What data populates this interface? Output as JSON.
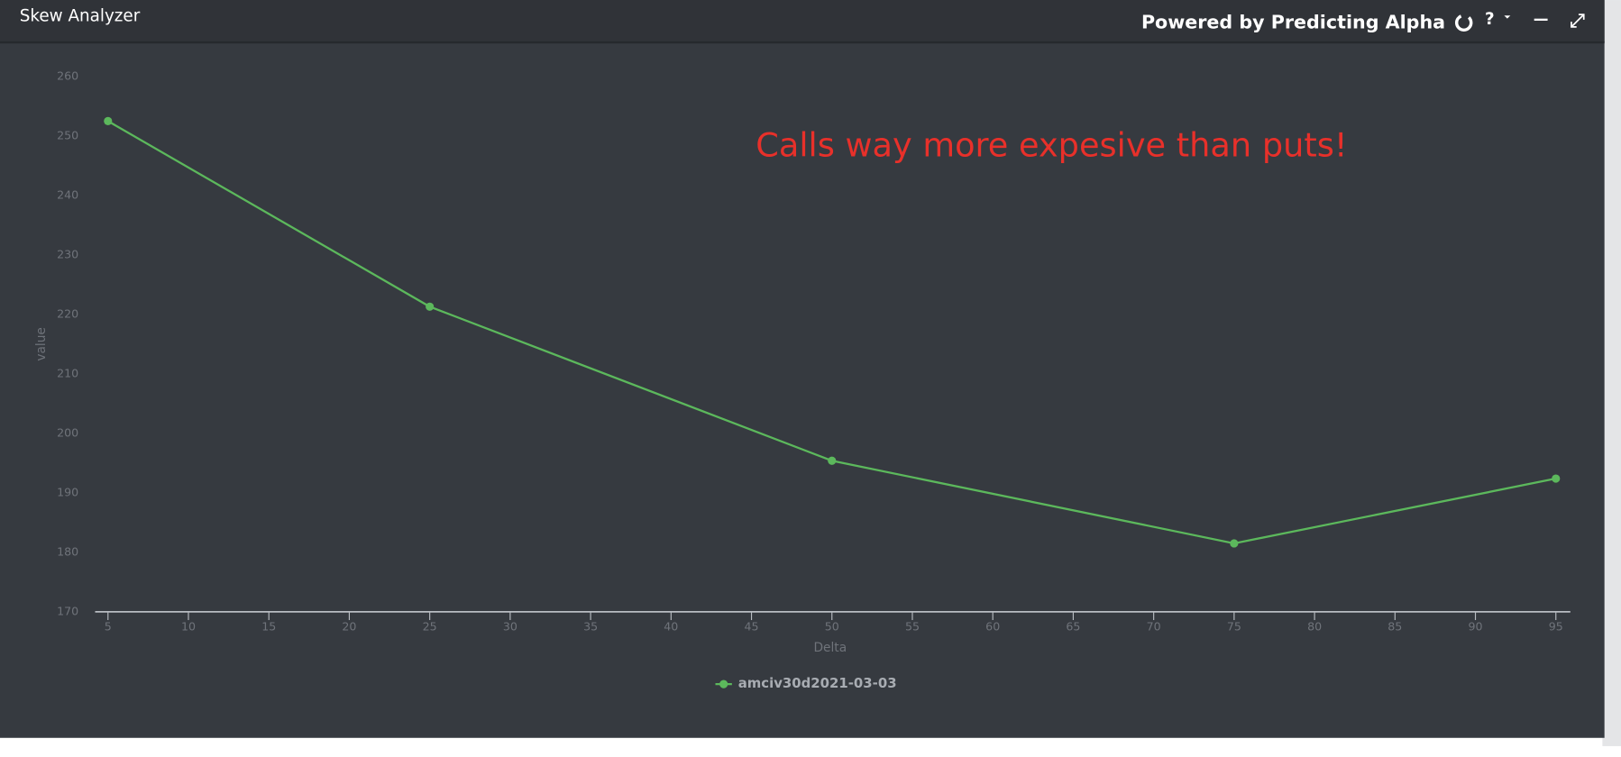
{
  "header": {
    "title": "Skew Analyzer",
    "powered_by": "Powered by Predicting Alpha",
    "help": "?"
  },
  "chart_data": {
    "type": "line",
    "annotation": "Calls way more expesive than puts!",
    "xlabel": "Delta",
    "ylabel": "value",
    "x": [
      5,
      25,
      50,
      75,
      95
    ],
    "series": [
      {
        "name": "amciv30d2021-03-03",
        "color": "#5cb85c",
        "values": [
          252.5,
          221.3,
          195.4,
          181.5,
          192.4
        ]
      }
    ],
    "xlim": [
      4.2,
      95.9
    ],
    "xticks": [
      5,
      10,
      15,
      20,
      25,
      30,
      35,
      40,
      45,
      50,
      55,
      60,
      65,
      70,
      75,
      80,
      85,
      90,
      95
    ],
    "ylim": [
      170,
      260
    ],
    "yticks": [
      170,
      180,
      190,
      200,
      210,
      220,
      230,
      240,
      250,
      260
    ],
    "grid": false,
    "legend": "bottom"
  }
}
